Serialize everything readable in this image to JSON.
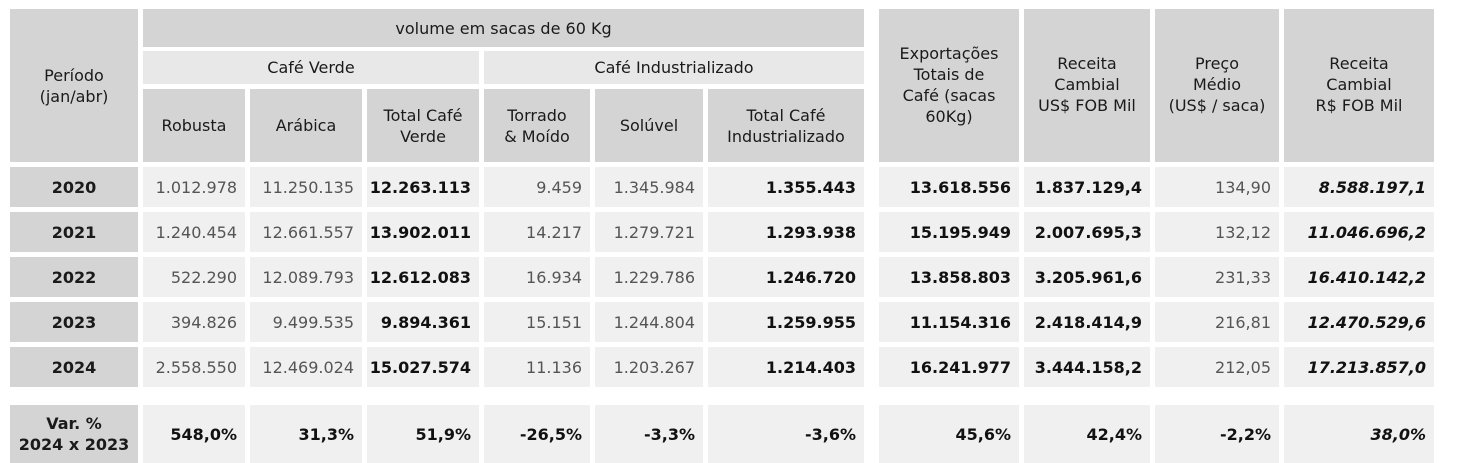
{
  "header": {
    "periodo": "Período\n(jan/abr)",
    "volume": "volume em sacas de 60 Kg",
    "cafe_verde": "Café Verde",
    "cafe_industrializado": "Café Industrializado",
    "robusta": "Robusta",
    "arabica": "Arábica",
    "total_cafe_verde": "Total Café\nVerde",
    "torrado_moido": "Torrado\n& Moído",
    "soluvel": "Solúvel",
    "total_cafe_industrializado": "Total Café\nIndustrializado",
    "exportacoes_totais": "Exportações\nTotais de\nCafé (sacas\n60Kg)",
    "receita_cambial_usd": "Receita\nCambial\nUS$ FOB Mil",
    "preco_medio": "Preço\nMédio\n(US$ / saca)",
    "receita_cambial_brl": "Receita\nCambial\nR$ FOB Mil"
  },
  "rows": [
    {
      "periodo": "2020",
      "robusta": "1.012.978",
      "arabica": "11.250.135",
      "total_verde": "12.263.113",
      "torrado": "9.459",
      "soluvel": "1.345.984",
      "total_ind": "1.355.443",
      "exportacoes": "13.618.556",
      "receita_usd": "1.837.129,4",
      "preco": "134,90",
      "receita_brl": "8.588.197,1"
    },
    {
      "periodo": "2021",
      "robusta": "1.240.454",
      "arabica": "12.661.557",
      "total_verde": "13.902.011",
      "torrado": "14.217",
      "soluvel": "1.279.721",
      "total_ind": "1.293.938",
      "exportacoes": "15.195.949",
      "receita_usd": "2.007.695,3",
      "preco": "132,12",
      "receita_brl": "11.046.696,2"
    },
    {
      "periodo": "2022",
      "robusta": "522.290",
      "arabica": "12.089.793",
      "total_verde": "12.612.083",
      "torrado": "16.934",
      "soluvel": "1.229.786",
      "total_ind": "1.246.720",
      "exportacoes": "13.858.803",
      "receita_usd": "3.205.961,6",
      "preco": "231,33",
      "receita_brl": "16.410.142,2"
    },
    {
      "periodo": "2023",
      "robusta": "394.826",
      "arabica": "9.499.535",
      "total_verde": "9.894.361",
      "torrado": "15.151",
      "soluvel": "1.244.804",
      "total_ind": "1.259.955",
      "exportacoes": "11.154.316",
      "receita_usd": "2.418.414,9",
      "preco": "216,81",
      "receita_brl": "12.470.529,6"
    },
    {
      "periodo": "2024",
      "robusta": "2.558.550",
      "arabica": "12.469.024",
      "total_verde": "15.027.574",
      "torrado": "11.136",
      "soluvel": "1.203.267",
      "total_ind": "1.214.403",
      "exportacoes": "16.241.977",
      "receita_usd": "3.444.158,2",
      "preco": "212,05",
      "receita_brl": "17.213.857,0"
    }
  ],
  "variation": {
    "label": "Var. %\n2024 x 2023",
    "robusta": "548,0%",
    "arabica": "31,3%",
    "total_verde": "51,9%",
    "torrado": "-26,5%",
    "soluvel": "-3,3%",
    "total_ind": "-3,6%",
    "exportacoes": "45,6%",
    "receita_usd": "42,4%",
    "preco": "-2,2%",
    "receita_brl": "38,0%"
  }
}
